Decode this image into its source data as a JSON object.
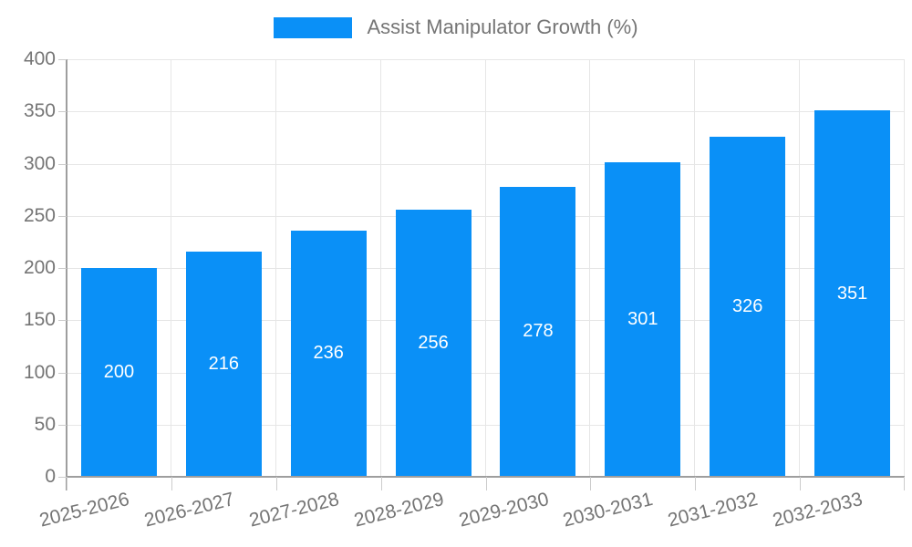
{
  "legend": {
    "label": "Assist Manipulator Growth (%)"
  },
  "chart_data": {
    "type": "bar",
    "title": "",
    "xlabel": "",
    "ylabel": "",
    "legend": [
      "Assist Manipulator Growth (%)"
    ],
    "legend_position": "top-center",
    "categories": [
      "2025-2026",
      "2026-2027",
      "2027-2028",
      "2028-2029",
      "2029-2030",
      "2030-2031",
      "2031-2032",
      "2032-2033"
    ],
    "values": [
      200,
      216,
      236,
      256,
      278,
      301,
      326,
      351
    ],
    "value_labels": [
      "200",
      "216",
      "236",
      "256",
      "278",
      "301",
      "326",
      "351"
    ],
    "ylim": [
      0,
      400
    ],
    "ytick_step": 50,
    "yticks": [
      0,
      50,
      100,
      150,
      200,
      250,
      300,
      350,
      400
    ],
    "grid": true,
    "colors": {
      "bar": "#0a90f7",
      "value_label": "#ffffff",
      "axis_text": "#757575",
      "gridline": "#e6e6e6",
      "axis_line": "#9e9e9e",
      "tick": "#cccccc",
      "background": "#ffffff"
    }
  }
}
